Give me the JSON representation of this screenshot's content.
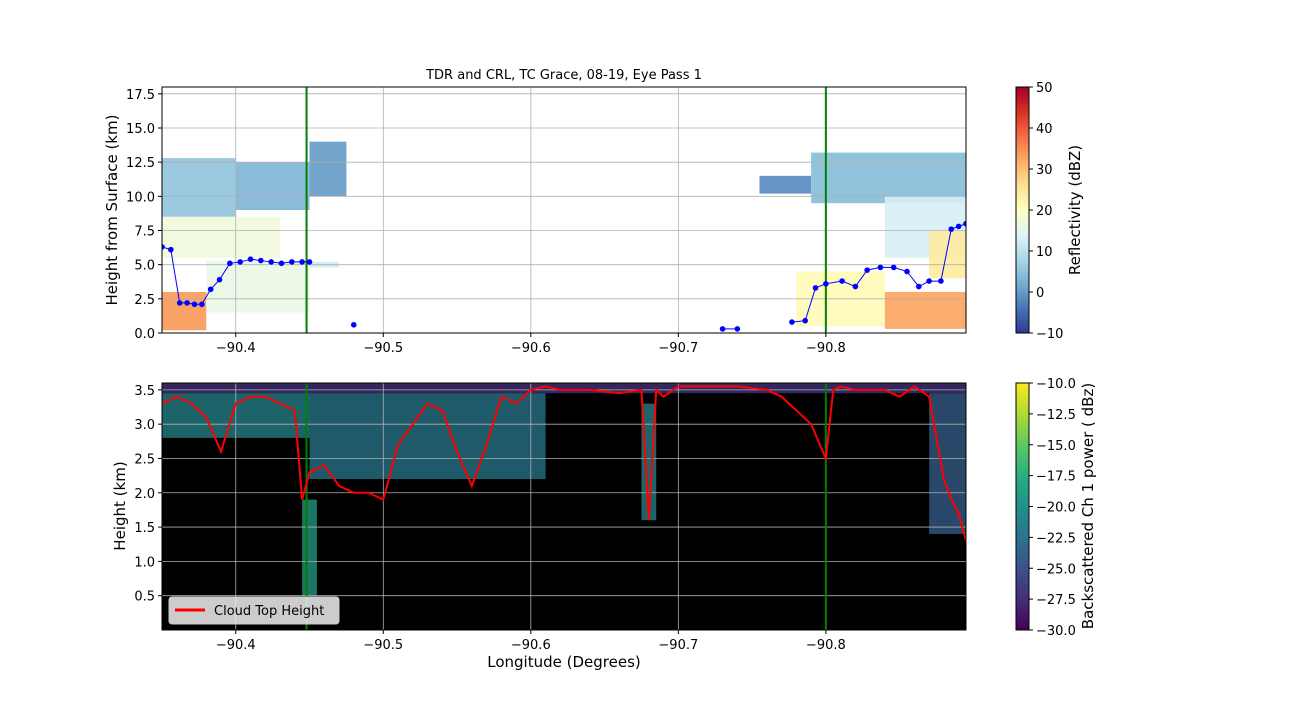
{
  "chart_data": [
    {
      "type": "heatmap",
      "title": "TDR and CRL, TC Grace, 08-19, Eye Pass 1",
      "xlabel": "",
      "ylabel": "Height from Surface (km)",
      "xlim": [
        -90.35,
        -90.895
      ],
      "ylim": [
        0,
        18
      ],
      "x_ticks": [
        -90.4,
        -90.5,
        -90.6,
        -90.7,
        -90.8
      ],
      "x_tick_labels": [
        "−90.4",
        "−90.5",
        "−90.6",
        "−90.7",
        "−90.8"
      ],
      "y_ticks": [
        0,
        2.5,
        5,
        7.5,
        10,
        12.5,
        15,
        17.5
      ],
      "y_tick_labels": [
        "0.0",
        "2.5",
        "5.0",
        "7.5",
        "10.0",
        "12.5",
        "15.0",
        "17.5"
      ],
      "grid": true,
      "colorbar": {
        "label": "Reflectivity (dBZ)",
        "range": [
          -10,
          50
        ],
        "ticks": [
          -10,
          0,
          10,
          20,
          30,
          40,
          50
        ],
        "tick_labels": [
          "−10",
          "0",
          "10",
          "20",
          "30",
          "40",
          "50"
        ],
        "colormap": "RdYlBu_r"
      },
      "vertical_lines": [
        {
          "x": -90.448,
          "color": "#008000"
        },
        {
          "x": -90.8,
          "color": "#008000"
        }
      ],
      "series": [
        {
          "type": "line",
          "color": "#0000ff",
          "x": [
            -90.35,
            -90.356,
            -90.362,
            -90.367,
            -90.372,
            -90.377,
            -90.383,
            -90.389,
            -90.396,
            -90.403,
            -90.41,
            -90.417,
            -90.424,
            -90.431,
            -90.438,
            -90.445,
            -90.45
          ],
          "y": [
            6.3,
            6.1,
            2.2,
            2.2,
            2.1,
            2.1,
            3.2,
            3.9,
            5.1,
            5.2,
            5.4,
            5.3,
            5.2,
            5.1,
            5.2,
            5.2,
            5.2
          ]
        },
        {
          "type": "scatter",
          "color": "#0000ff",
          "x": [
            -90.48
          ],
          "y": [
            0.6
          ]
        },
        {
          "type": "line",
          "color": "#0000ff",
          "x": [
            -90.73,
            -90.74
          ],
          "y": [
            0.3,
            0.3
          ]
        },
        {
          "type": "line",
          "color": "#0000ff",
          "x": [
            -90.777,
            -90.786,
            -90.793,
            -90.8,
            -90.811,
            -90.82,
            -90.828,
            -90.837,
            -90.846,
            -90.855,
            -90.863,
            -90.87,
            -90.878,
            -90.885,
            -90.89,
            -90.895
          ],
          "y": [
            0.8,
            0.9,
            3.3,
            3.6,
            3.8,
            3.4,
            4.6,
            4.8,
            4.8,
            4.5,
            3.4,
            3.8,
            3.8,
            7.6,
            7.8,
            8.0
          ]
        }
      ],
      "regions": [
        {
          "x": [
            -90.35,
            -90.4
          ],
          "y": [
            8.5,
            12.8
          ],
          "value": 5
        },
        {
          "x": [
            -90.4,
            -90.45
          ],
          "y": [
            9.0,
            12.5
          ],
          "value": 3
        },
        {
          "x": [
            -90.45,
            -90.475
          ],
          "y": [
            10.0,
            14.0
          ],
          "value": 0
        },
        {
          "x": [
            -90.35,
            -90.43
          ],
          "y": [
            5.5,
            8.5
          ],
          "value": 17
        },
        {
          "x": [
            -90.35,
            -90.38
          ],
          "y": [
            0.2,
            3.0
          ],
          "value": 34
        },
        {
          "x": [
            -90.38,
            -90.45
          ],
          "y": [
            1.5,
            5.3
          ],
          "value": 16
        },
        {
          "x": [
            -90.45,
            -90.47
          ],
          "y": [
            4.8,
            5.2
          ],
          "value": 12
        },
        {
          "x": [
            -90.755,
            -90.79
          ],
          "y": [
            10.2,
            11.5
          ],
          "value": -2
        },
        {
          "x": [
            -90.79,
            -90.895
          ],
          "y": [
            9.5,
            13.2
          ],
          "value": 4
        },
        {
          "x": [
            -90.84,
            -90.895
          ],
          "y": [
            5.5,
            10.0
          ],
          "value": 13
        },
        {
          "x": [
            -90.78,
            -90.84
          ],
          "y": [
            0.5,
            4.5
          ],
          "value": 21
        },
        {
          "x": [
            -90.84,
            -90.895
          ],
          "y": [
            0.3,
            3.0
          ],
          "value": 33
        },
        {
          "x": [
            -90.87,
            -90.895
          ],
          "y": [
            4.0,
            7.5
          ],
          "value": 24
        }
      ]
    },
    {
      "type": "heatmap",
      "title": "",
      "xlabel": "Longitude (Degrees)",
      "ylabel": "Height (km)",
      "xlim": [
        -90.35,
        -90.895
      ],
      "ylim": [
        0,
        3.6
      ],
      "x_ticks": [
        -90.4,
        -90.5,
        -90.6,
        -90.7,
        -90.8
      ],
      "x_tick_labels": [
        "−90.4",
        "−90.5",
        "−90.6",
        "−90.7",
        "−90.8"
      ],
      "y_ticks": [
        0.5,
        1.0,
        1.5,
        2.0,
        2.5,
        3.0,
        3.5
      ],
      "y_tick_labels": [
        "0.5",
        "1.0",
        "1.5",
        "2.0",
        "2.5",
        "3.0",
        "3.5"
      ],
      "grid": true,
      "background": "#000000",
      "colorbar": {
        "label": "Backscattered Ch 1 power ( dBz)",
        "range": [
          -30,
          -10
        ],
        "ticks": [
          -30,
          -27.5,
          -25,
          -22.5,
          -20,
          -17.5,
          -15,
          -12.5,
          -10
        ],
        "tick_labels": [
          "−30.0",
          "−27.5",
          "−25.0",
          "−22.5",
          "−20.0",
          "−17.5",
          "−15.0",
          "−12.5",
          "−10.0"
        ],
        "colormap": "viridis"
      },
      "vertical_lines": [
        {
          "x": -90.448,
          "color": "#008000"
        },
        {
          "x": -90.8,
          "color": "#008000"
        }
      ],
      "legend": {
        "position": "lower-left",
        "entries": [
          {
            "label": "Cloud Top Height",
            "color": "#ff0000"
          }
        ]
      },
      "series": [
        {
          "name": "Cloud Top Height",
          "type": "line",
          "color": "#ff0000",
          "x": [
            -90.35,
            -90.36,
            -90.37,
            -90.38,
            -90.39,
            -90.4,
            -90.41,
            -90.42,
            -90.43,
            -90.44,
            -90.445,
            -90.45,
            -90.46,
            -90.47,
            -90.48,
            -90.49,
            -90.5,
            -90.51,
            -90.52,
            -90.53,
            -90.54,
            -90.55,
            -90.56,
            -90.57,
            -90.58,
            -90.59,
            -90.6,
            -90.61,
            -90.62,
            -90.64,
            -90.66,
            -90.675,
            -90.68,
            -90.685,
            -90.69,
            -90.7,
            -90.72,
            -90.74,
            -90.76,
            -90.77,
            -90.78,
            -90.79,
            -90.8,
            -90.805,
            -90.81,
            -90.82,
            -90.84,
            -90.85,
            -90.86,
            -90.87,
            -90.875,
            -90.88,
            -90.885,
            -90.89,
            -90.895
          ],
          "y": [
            3.3,
            3.4,
            3.3,
            3.1,
            2.6,
            3.3,
            3.4,
            3.4,
            3.3,
            3.2,
            1.9,
            2.3,
            2.4,
            2.1,
            2.0,
            2.0,
            1.9,
            2.7,
            3.0,
            3.3,
            3.2,
            2.6,
            2.1,
            2.7,
            3.4,
            3.3,
            3.5,
            3.55,
            3.5,
            3.5,
            3.45,
            3.5,
            1.6,
            3.5,
            3.4,
            3.55,
            3.55,
            3.55,
            3.5,
            3.4,
            3.2,
            3.0,
            2.5,
            3.5,
            3.55,
            3.5,
            3.5,
            3.4,
            3.55,
            3.4,
            2.8,
            2.2,
            1.9,
            1.7,
            1.3
          ]
        }
      ],
      "regions": [
        {
          "x": [
            -90.35,
            -90.895
          ],
          "y": [
            3.45,
            3.6
          ],
          "value": -27
        },
        {
          "x": [
            -90.35,
            -90.45
          ],
          "y": [
            2.8,
            3.45
          ],
          "value": -21
        },
        {
          "x": [
            -90.45,
            -90.61
          ],
          "y": [
            2.2,
            3.45
          ],
          "value": -22
        },
        {
          "x": [
            -90.87,
            -90.895
          ],
          "y": [
            1.4,
            3.45
          ],
          "value": -24
        },
        {
          "x": [
            -90.445,
            -90.455
          ],
          "y": [
            0.5,
            1.9
          ],
          "value": -19
        },
        {
          "x": [
            -90.675,
            -90.685
          ],
          "y": [
            1.6,
            3.3
          ],
          "value": -21
        }
      ]
    }
  ]
}
